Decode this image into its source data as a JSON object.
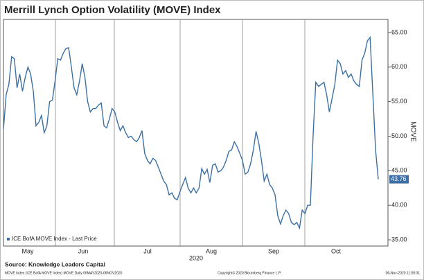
{
  "chart_data": {
    "type": "line",
    "title": "Merrill Lynch Option Volatility (MOVE) Index",
    "y_axis_label": "MOVE",
    "x_axis_label": "2020",
    "month_labels": [
      "May",
      "Jun",
      "Jul",
      "Aug",
      "Sep",
      "Oct"
    ],
    "grid": "x",
    "axis_side": "right",
    "ylim": [
      34.1,
      66.9
    ],
    "yticks": [
      {
        "value": 35,
        "label": "35.00"
      },
      {
        "value": 40,
        "label": "40.00"
      },
      {
        "value": 45,
        "label": "45.00"
      },
      {
        "value": 50,
        "label": "50.00"
      },
      {
        "value": 55,
        "label": "55.00"
      },
      {
        "value": 60,
        "label": "60.00"
      },
      {
        "value": 65,
        "label": "65.00"
      }
    ],
    "series": [
      {
        "name": "ICE BofA MOVE Index - Last Price",
        "color": "#3b6fa3",
        "values": [
          51,
          56,
          57.5,
          61.5,
          61.2,
          57,
          59,
          56.5,
          58.5,
          60,
          59,
          56.5,
          51.5,
          52,
          53,
          50.5,
          51.5,
          55,
          55.2,
          58,
          61.2,
          61,
          62,
          62.7,
          62.8,
          60,
          57,
          56,
          58,
          60.5,
          58.5,
          55,
          53.5,
          54,
          54,
          54.5,
          54.8,
          51.5,
          51.2,
          52.5,
          54,
          53.5,
          52,
          50.8,
          51.5,
          50.5,
          49.8,
          50,
          49.5,
          49.2,
          49.8,
          50.8,
          47.5,
          46.5,
          46,
          46.8,
          46.5,
          45.5,
          44.5,
          43.5,
          43,
          41.5,
          41.8,
          41,
          40.8,
          42,
          43,
          44,
          42.5,
          41.8,
          42.5,
          41.8,
          42.5,
          45.3,
          44.5,
          45.2,
          43.3,
          45.8,
          46,
          44.8,
          45,
          45.5,
          46.5,
          47.8,
          48,
          49.2,
          48.5,
          47.5,
          46.5,
          44.5,
          44.8,
          46,
          48,
          50.7,
          49,
          46.5,
          43.5,
          44.5,
          43,
          42.5,
          41.5,
          38.5,
          37.3,
          38.5,
          39.3,
          38.8,
          37.5,
          37.2,
          37.5,
          36.7,
          39.3,
          38.8,
          40,
          40,
          50,
          57.8,
          57.2,
          57.5,
          57.8,
          56,
          53.5,
          55.5,
          57.5,
          61,
          60.5,
          59,
          59.5,
          58.5,
          59,
          58,
          57.5,
          57.2,
          61,
          62,
          63.8,
          64.3,
          56,
          48,
          43.76
        ]
      }
    ],
    "source": "Source: Knowledge Leaders Capital",
    "footer_left": "MOVE Index (ICE BofA MOVE Index) MOVE  Daily 06MAY2020-06NOV2020",
    "footer_center": "Copyright© 2020 Bloomberg Finance L.P.",
    "footer_right": "06-Nov-2020 11:00:01"
  }
}
